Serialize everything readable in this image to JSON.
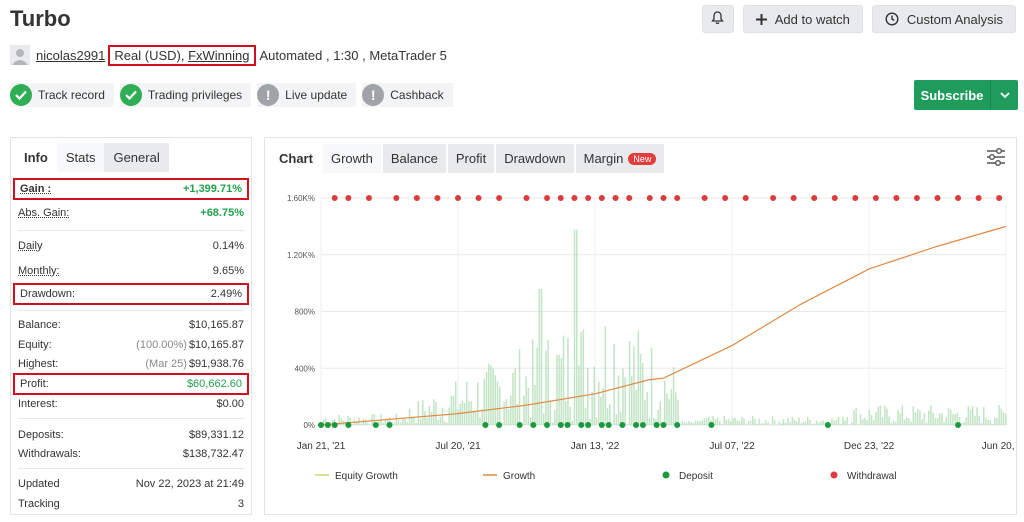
{
  "title": "Turbo",
  "actions": {
    "bell": "bell-icon",
    "add_watch": "Add to watch",
    "custom_analysis": "Custom Analysis"
  },
  "meta": {
    "user": "nicolas2991",
    "account_type": "Real (USD), ",
    "broker": "FxWinning",
    "rest": "Automated , 1:30 , MetaTrader 5"
  },
  "badges": [
    {
      "label": "Track record",
      "status": "ok"
    },
    {
      "label": "Trading privileges",
      "status": "ok"
    },
    {
      "label": "Live update",
      "status": "warn"
    },
    {
      "label": "Cashback",
      "status": "warn"
    }
  ],
  "subscribe": "Subscribe",
  "left_tabs": [
    "Info",
    "Stats",
    "General"
  ],
  "stats": {
    "gain": {
      "label": "Gain :",
      "value": "+1,399.71%"
    },
    "abs_gain": {
      "label": "Abs. Gain:",
      "value": "+68.75%"
    },
    "daily": {
      "label": "Daily",
      "value": "0.14%"
    },
    "monthly": {
      "label": "Monthly:",
      "value": "9.65%"
    },
    "drawdown": {
      "label": "Drawdown:",
      "value": "2.49%"
    },
    "balance": {
      "label": "Balance:",
      "value": "$10,165.87"
    },
    "equity": {
      "label": "Equity:",
      "value_note": "(100.00%)",
      "value": "$10,165.87"
    },
    "highest": {
      "label": "Highest:",
      "value_note": "(Mar 25)",
      "value": "$91,938.76"
    },
    "profit": {
      "label": "Profit:",
      "value": "$60,662.60"
    },
    "interest": {
      "label": "Interest:",
      "value": "$0.00"
    },
    "deposits": {
      "label": "Deposits:",
      "value": "$89,331.12"
    },
    "withdrawals": {
      "label": "Withdrawals:",
      "value": "$138,732.47"
    },
    "updated": {
      "label": "Updated",
      "value": "Nov 22, 2023 at 21:49"
    },
    "tracking": {
      "label": "Tracking",
      "value": "3"
    }
  },
  "chart_tabs": [
    "Chart",
    "Growth",
    "Balance",
    "Profit",
    "Drawdown",
    "Margin"
  ],
  "new_badge": "New",
  "colors": {
    "growth": "#e08a45",
    "equity_growth": "#c9d87a",
    "deposit": "#1a9a3c",
    "withdrawal": "#dc3c3c",
    "bars": "#9fd6a4"
  },
  "chart_data": {
    "type": "line",
    "y_ticks": [
      "0%",
      "400%",
      "800%",
      "1.20K%",
      "1.60K%"
    ],
    "ylim": [
      0,
      1600
    ],
    "x_ticks": [
      "Jan 21, '21",
      "Jul 20, '21",
      "Jan 13, '22",
      "Jul 07, '22",
      "Dec 23, '22",
      "Jun 20, '23"
    ],
    "legend": [
      "Equity Growth",
      "Growth",
      "Deposit",
      "Withdrawal"
    ],
    "series": [
      {
        "name": "Growth",
        "x": [
          0,
          0.1,
          0.2,
          0.3,
          0.4,
          0.48,
          0.5,
          0.6,
          0.7,
          0.8,
          0.9,
          1.0
        ],
        "y": [
          0,
          40,
          80,
          140,
          220,
          320,
          330,
          560,
          850,
          1100,
          1260,
          1400
        ]
      }
    ]
  }
}
